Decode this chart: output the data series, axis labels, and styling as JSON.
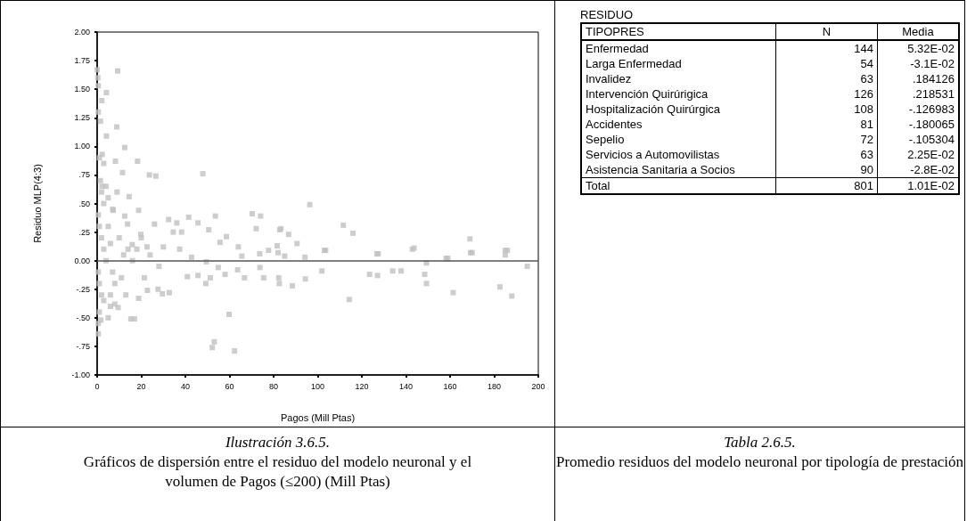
{
  "chart_data": [
    {
      "type": "scatter",
      "xlabel": "Pagos (Mill Ptas)",
      "ylabel": "Residuo MLP(4:3)",
      "marker": "square",
      "grid": false,
      "xlim": [
        0,
        200
      ],
      "xticks": [
        0,
        20,
        40,
        60,
        80,
        100,
        120,
        140,
        160,
        180,
        200
      ],
      "ylim": [
        -1,
        2
      ],
      "yticks": [
        {
          "value": -1,
          "label": "-1.00"
        },
        {
          "value": -0.75,
          "label": "-.75"
        },
        {
          "value": -0.5,
          "label": "-.50"
        },
        {
          "value": -0.25,
          "label": "-.25"
        },
        {
          "value": 0,
          "label": "0.00"
        },
        {
          "value": 0.25,
          "label": ".25"
        },
        {
          "value": 0.5,
          "label": ".50"
        },
        {
          "value": 0.75,
          "label": ".75"
        },
        {
          "value": 1,
          "label": "1.00"
        },
        {
          "value": 1.25,
          "label": "1.25"
        },
        {
          "value": 1.5,
          "label": "1.50"
        },
        {
          "value": 1.75,
          "label": "1.75"
        },
        {
          "value": 2,
          "label": "2.00"
        }
      ],
      "ref_lines": [
        {
          "axis": "y",
          "value": 0,
          "color": "#555555"
        }
      ],
      "annotations": [
        "Ilustración 3.6.5.",
        "Gráficos de dispersión entre el residuo del modelo neuronal y el volumen de Pagos (≤200) (Mill Ptas)"
      ],
      "series": [
        {
          "color": "#c0c0c0",
          "x": [
            195,
            188,
            182.6,
            186,
            170,
            161.4,
            159,
            149.3,
            149.3,
            148.5,
            143.7,
            137.8,
            134,
            127.1,
            123.5,
            127.4,
            114.3,
            101.9,
            103.6,
            94.4,
            88.5,
            82.6,
            62.3,
            59.8,
            53.1,
            52.2,
            49.3,
            40.9,
            32.7,
            29.6,
            27.6,
            22.8,
            21.4,
            15.3,
            16.9,
            18.8,
            9.5,
            0.5,
            1.7,
            5,
            75.5,
            73.8,
            66.8,
            63.7,
            58,
            51.3,
            45.7,
            82.3,
            9.3,
            0,
            0.5,
            4.2,
            2.1,
            1.5,
            8.9,
            4.2,
            12.5,
            2.3,
            18.3,
            8.3,
            47.9,
            26.6,
            23.7,
            11.5,
            2.2,
            14.5,
            18.8,
            7.3,
            12.5,
            53.6,
            70.3,
            74.1,
            41.5,
            36.1,
            26,
            32.4,
            45.7,
            82.8,
            72.1,
            34.5,
            38.3,
            50.6,
            58.6,
            64,
            55.7,
            19.8,
            13.8,
            15.9,
            22.6,
            37.4,
            42.8,
            49.5,
            54.9,
            65.6,
            73.7,
            82,
            96.4,
            111.6,
            116,
            103,
            126.8,
            142.9,
            169,
            169.3,
            185,
            185,
            158.2,
            83.3,
            86.8,
            90.6,
            94.2,
            85,
            81.6,
            77.7,
            0.3,
            0.5,
            1,
            1.5,
            2,
            3,
            0.5,
            1,
            2,
            3,
            4,
            0.5,
            1,
            2,
            3,
            1,
            0.5,
            5,
            6,
            7,
            8,
            6,
            10,
            12,
            11,
            14,
            4,
            5,
            7,
            9,
            3,
            6,
            8,
            13,
            16,
            18,
            20,
            24,
            28,
            30
          ],
          "values": [
            -0.05,
            -0.31,
            -0.23,
            0.09,
            0.07,
            -0.28,
            0.02,
            -0.2,
            -0.02,
            -0.12,
            0.11,
            -0.09,
            -0.09,
            -0.13,
            -0.12,
            0.06,
            -0.34,
            -0.09,
            0.09,
            -0.16,
            -0.22,
            -0.2,
            -0.79,
            -0.47,
            -0.71,
            -0.76,
            -0.2,
            -0.14,
            -0.28,
            -0.29,
            -0.25,
            -0.26,
            -0.15,
            -0.51,
            -0.51,
            -0.33,
            -0.41,
            -0.64,
            -0.52,
            -0.5,
            -0.15,
            -0.06,
            -0.15,
            -0.08,
            -0.12,
            -0.15,
            -0.13,
            -0.15,
            1.66,
            1.67,
            1.53,
            1.47,
            1.4,
            1.22,
            1.17,
            1.09,
            0.99,
            0.93,
            0.87,
            0.87,
            0.76,
            0.74,
            0.75,
            0.77,
            0.65,
            0.56,
            0.44,
            0.44,
            0.39,
            0.39,
            0.41,
            0.39,
            0.38,
            0.33,
            0.32,
            0.36,
            0.33,
            0.27,
            0.28,
            0.25,
            0.25,
            0.27,
            0.21,
            0.12,
            0.16,
            0.23,
            0.32,
            0.14,
            0.12,
            0.1,
            0.03,
            -0.01,
            -0.06,
            0.04,
            0.06,
            0.07,
            0.49,
            0.31,
            0.24,
            0.09,
            0.06,
            0.1,
            0.19,
            0.07,
            0.09,
            0.05,
            0.02,
            0.28,
            0.23,
            0.15,
            0.03,
            0.04,
            0.13,
            0.09,
            1.6,
            1.3,
            0.9,
            0.7,
            0.6,
            0.5,
            0.4,
            0.3,
            0.2,
            0.1,
            0,
            -0.1,
            -0.2,
            -0.3,
            -0.35,
            -0.45,
            -0.55,
            0.3,
            0.15,
            -0.1,
            -0.2,
            -0.3,
            0.2,
            0.05,
            -0.15,
            0.1,
            0.65,
            0.55,
            0.45,
            0.6,
            0.85,
            -0.4,
            -0.38,
            -0.3,
            0,
            0.1,
            0.2,
            0.05,
            -0.05,
            0.12
          ]
        }
      ]
    },
    {
      "type": "other",
      "title": "RESIDUO",
      "xlabel": "TIPOPRES",
      "categories": [
        "Enfermedad",
        "Larga Enfermedad",
        "Invalidez",
        "Intervención Quirúrigica",
        "Hospitalización Quirúrgica",
        "Accidentes",
        "Sepelio",
        "Servicios a Automovilistas",
        "Asistencia Sanitaria a Socios",
        "Total"
      ],
      "annotations": [
        "Tabla 2.6.5.",
        "Promedio residuos del modelo neuronal por tipología de prestación"
      ],
      "data_labels": true,
      "series": [
        {
          "name": "N",
          "values": [
            144,
            54,
            63,
            126,
            108,
            81,
            72,
            63,
            90,
            801
          ]
        },
        {
          "name": "Media",
          "values": [
            0.0532,
            -0.031,
            0.184126,
            0.218531,
            -0.126983,
            -0.180065,
            -0.105304,
            0.0225,
            -0.028,
            0.0101
          ],
          "value_labels": [
            "5.32E-02",
            "-3.1E-02",
            ".184126",
            ".218531",
            "-.126983",
            "-.180065",
            "-.105304",
            "2.25E-02",
            "-2.8E-02",
            "1.01E-02"
          ]
        }
      ]
    }
  ]
}
